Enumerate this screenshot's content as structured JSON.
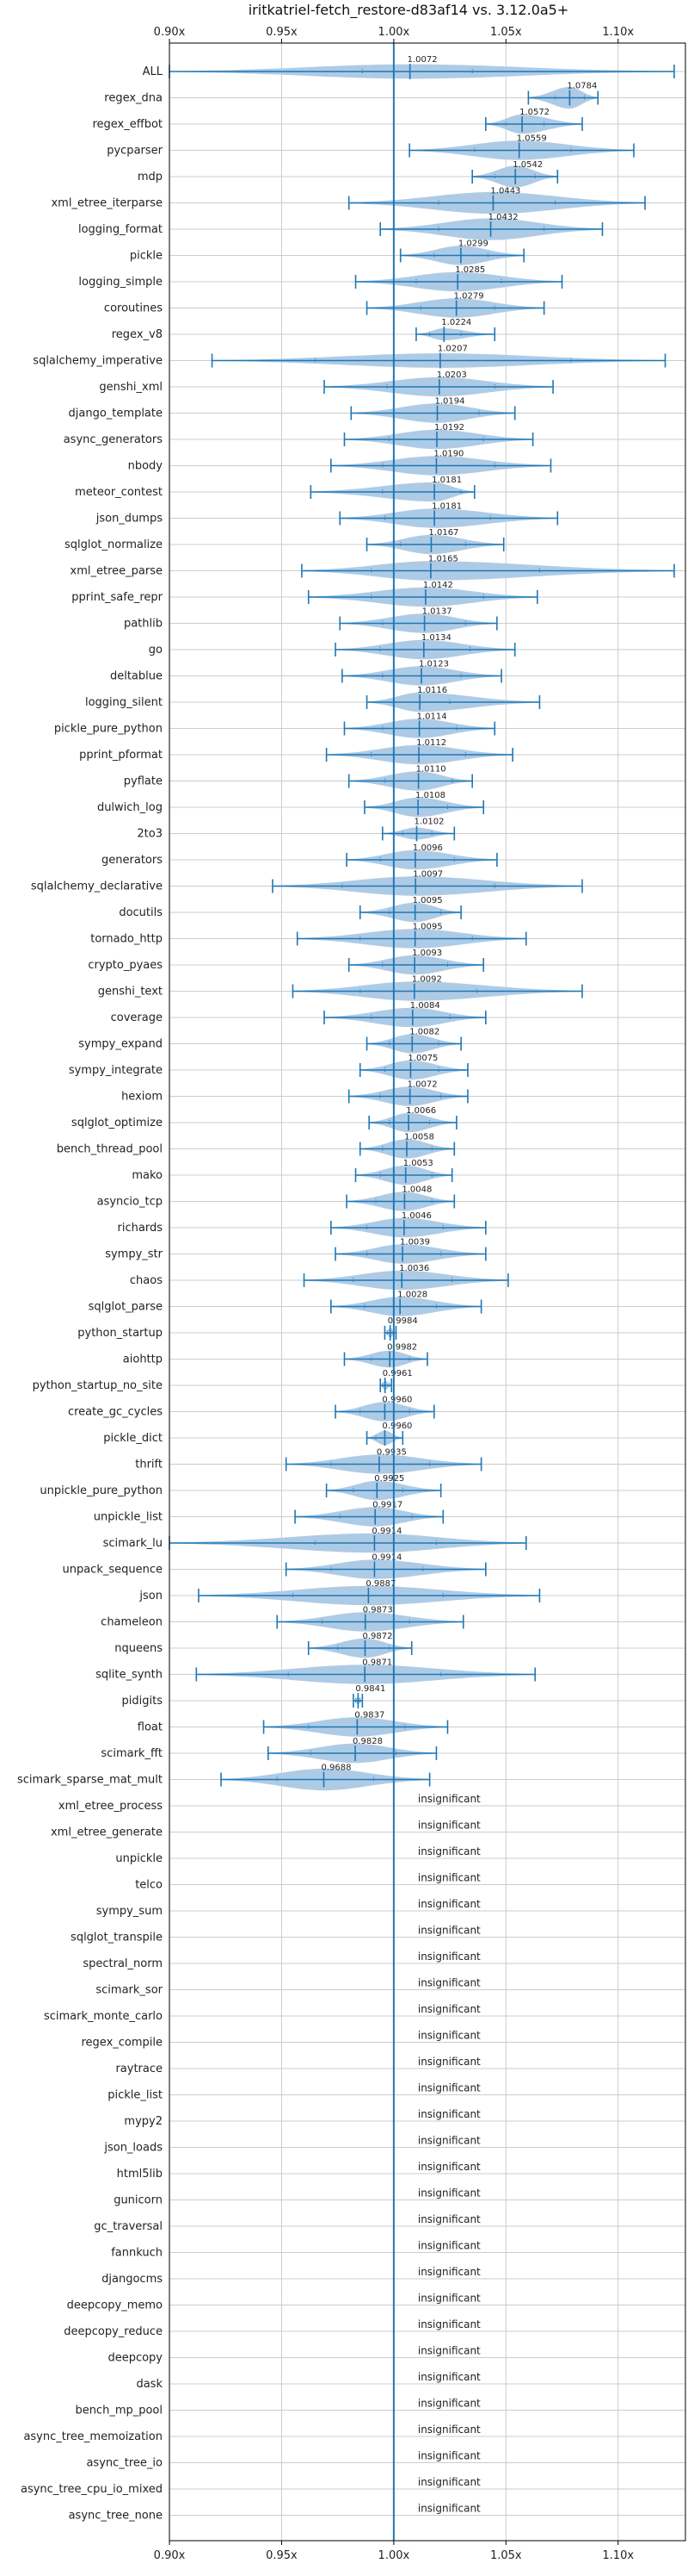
{
  "chart_data": {
    "type": "violin",
    "title": "iritkatriel-fetch_restore-d83af14 vs. 3.12.0a5+",
    "xlim": [
      0.9,
      1.13
    ],
    "ref_line": 1.0,
    "tick_values": [
      0.9,
      0.95,
      1.0,
      1.05,
      1.1
    ],
    "tick_labels": [
      "0.90x",
      "0.95x",
      "1.00x",
      "1.05x",
      "1.10x"
    ],
    "grid": true,
    "colors": {
      "violin": "#aecbe6",
      "line": "#1f77b4",
      "grid": "#cccccc"
    },
    "insignificant_label": "insignificant",
    "rows": [
      {
        "name": "ALL",
        "value": 1.0072,
        "min": 0.9,
        "max": 1.125,
        "q1": 0.986,
        "q3": 1.035,
        "w": 0.6
      },
      {
        "name": "regex_dna",
        "value": 1.0784,
        "min": 1.06,
        "max": 1.091,
        "q1": 1.072,
        "q3": 1.085,
        "w": 0.9
      },
      {
        "name": "regex_effbot",
        "value": 1.0572,
        "min": 1.041,
        "max": 1.084,
        "q1": 1.05,
        "q3": 1.067,
        "w": 0.8
      },
      {
        "name": "pycparser",
        "value": 1.0559,
        "min": 1.007,
        "max": 1.107,
        "q1": 1.036,
        "q3": 1.079,
        "w": 0.8
      },
      {
        "name": "mdp",
        "value": 1.0542,
        "min": 1.035,
        "max": 1.073,
        "q1": 1.045,
        "q3": 1.063,
        "w": 0.9
      },
      {
        "name": "xml_etree_iterparse",
        "value": 1.0443,
        "min": 0.98,
        "max": 1.112,
        "q1": 1.02,
        "q3": 1.072,
        "w": 0.9
      },
      {
        "name": "logging_format",
        "value": 1.0432,
        "min": 0.994,
        "max": 1.093,
        "q1": 1.02,
        "q3": 1.067,
        "w": 0.9
      },
      {
        "name": "pickle",
        "value": 1.0299,
        "min": 1.003,
        "max": 1.058,
        "q1": 1.018,
        "q3": 1.042,
        "w": 0.8
      },
      {
        "name": "logging_simple",
        "value": 1.0285,
        "min": 0.983,
        "max": 1.075,
        "q1": 1.01,
        "q3": 1.048,
        "w": 0.8
      },
      {
        "name": "coroutines",
        "value": 1.0279,
        "min": 0.988,
        "max": 1.067,
        "q1": 1.012,
        "q3": 1.045,
        "w": 0.8
      },
      {
        "name": "regex_v8",
        "value": 1.0224,
        "min": 1.01,
        "max": 1.045,
        "q1": 1.016,
        "q3": 1.03,
        "w": 0.5
      },
      {
        "name": "sqlalchemy_imperative",
        "value": 1.0207,
        "min": 0.919,
        "max": 1.121,
        "q1": 0.965,
        "q3": 1.079,
        "w": 0.6
      },
      {
        "name": "genshi_xml",
        "value": 1.0203,
        "min": 0.969,
        "max": 1.071,
        "q1": 0.997,
        "q3": 1.045,
        "w": 0.8
      },
      {
        "name": "django_template",
        "value": 1.0194,
        "min": 0.981,
        "max": 1.054,
        "q1": 1.0,
        "q3": 1.038,
        "w": 0.8
      },
      {
        "name": "async_generators",
        "value": 1.0192,
        "min": 0.978,
        "max": 1.062,
        "q1": 0.998,
        "q3": 1.04,
        "w": 0.8
      },
      {
        "name": "nbody",
        "value": 1.019,
        "min": 0.972,
        "max": 1.07,
        "q1": 0.995,
        "q3": 1.045,
        "w": 0.8
      },
      {
        "name": "meteor_contest",
        "value": 1.0181,
        "min": 0.963,
        "max": 1.036,
        "q1": 0.995,
        "q3": 1.03,
        "w": 0.8
      },
      {
        "name": "json_dumps",
        "value": 1.0181,
        "min": 0.976,
        "max": 1.073,
        "q1": 0.996,
        "q3": 1.043,
        "w": 0.8
      },
      {
        "name": "sqlglot_normalize",
        "value": 1.0167,
        "min": 0.988,
        "max": 1.049,
        "q1": 1.003,
        "q3": 1.032,
        "w": 0.8
      },
      {
        "name": "xml_etree_parse",
        "value": 1.0165,
        "min": 0.959,
        "max": 1.125,
        "q1": 0.99,
        "q3": 1.065,
        "w": 0.8
      },
      {
        "name": "pprint_safe_repr",
        "value": 1.0142,
        "min": 0.962,
        "max": 1.064,
        "q1": 0.99,
        "q3": 1.04,
        "w": 0.8
      },
      {
        "name": "pathlib",
        "value": 1.0137,
        "min": 0.976,
        "max": 1.046,
        "q1": 0.995,
        "q3": 1.032,
        "w": 0.8
      },
      {
        "name": "go",
        "value": 1.0134,
        "min": 0.974,
        "max": 1.054,
        "q1": 0.994,
        "q3": 1.034,
        "w": 0.8
      },
      {
        "name": "deltablue",
        "value": 1.0123,
        "min": 0.977,
        "max": 1.048,
        "q1": 0.995,
        "q3": 1.03,
        "w": 0.8
      },
      {
        "name": "logging_silent",
        "value": 1.0116,
        "min": 0.988,
        "max": 1.065,
        "q1": 1.0,
        "q3": 1.025,
        "w": 0.8
      },
      {
        "name": "pickle_pure_python",
        "value": 1.0114,
        "min": 0.978,
        "max": 1.045,
        "q1": 0.995,
        "q3": 1.028,
        "w": 0.8
      },
      {
        "name": "pprint_pformat",
        "value": 1.0112,
        "min": 0.97,
        "max": 1.053,
        "q1": 0.99,
        "q3": 1.032,
        "w": 0.8
      },
      {
        "name": "pyflate",
        "value": 1.011,
        "min": 0.98,
        "max": 1.035,
        "q1": 0.996,
        "q3": 1.026,
        "w": 0.8
      },
      {
        "name": "dulwich_log",
        "value": 1.0108,
        "min": 0.987,
        "max": 1.04,
        "q1": 1.0,
        "q3": 1.024,
        "w": 0.8
      },
      {
        "name": "2to3",
        "value": 1.0102,
        "min": 0.995,
        "max": 1.027,
        "q1": 1.004,
        "q3": 1.017,
        "w": 0.5
      },
      {
        "name": "generators",
        "value": 1.0096,
        "min": 0.979,
        "max": 1.046,
        "q1": 0.994,
        "q3": 1.027,
        "w": 0.8
      },
      {
        "name": "sqlalchemy_declarative",
        "value": 1.0097,
        "min": 0.946,
        "max": 1.084,
        "q1": 0.977,
        "q3": 1.045,
        "w": 0.8
      },
      {
        "name": "docutils",
        "value": 1.0095,
        "min": 0.985,
        "max": 1.03,
        "q1": 0.998,
        "q3": 1.021,
        "w": 0.8
      },
      {
        "name": "tornado_http",
        "value": 1.0095,
        "min": 0.957,
        "max": 1.059,
        "q1": 0.985,
        "q3": 1.035,
        "w": 0.8
      },
      {
        "name": "crypto_pyaes",
        "value": 1.0093,
        "min": 0.98,
        "max": 1.04,
        "q1": 0.995,
        "q3": 1.024,
        "w": 0.8
      },
      {
        "name": "genshi_text",
        "value": 1.0092,
        "min": 0.955,
        "max": 1.084,
        "q1": 0.985,
        "q3": 1.037,
        "w": 0.8
      },
      {
        "name": "coverage",
        "value": 1.0084,
        "min": 0.969,
        "max": 1.041,
        "q1": 0.99,
        "q3": 1.025,
        "w": 0.8
      },
      {
        "name": "sympy_expand",
        "value": 1.0082,
        "min": 0.988,
        "max": 1.03,
        "q1": 0.998,
        "q3": 1.02,
        "w": 0.8
      },
      {
        "name": "sympy_integrate",
        "value": 1.0075,
        "min": 0.985,
        "max": 1.033,
        "q1": 0.996,
        "q3": 1.02,
        "w": 0.8
      },
      {
        "name": "hexiom",
        "value": 1.0072,
        "min": 0.98,
        "max": 1.033,
        "q1": 0.994,
        "q3": 1.021,
        "w": 0.8
      },
      {
        "name": "sqlglot_optimize",
        "value": 1.0066,
        "min": 0.989,
        "max": 1.028,
        "q1": 0.998,
        "q3": 1.016,
        "w": 0.8
      },
      {
        "name": "bench_thread_pool",
        "value": 1.0058,
        "min": 0.985,
        "max": 1.027,
        "q1": 0.995,
        "q3": 1.017,
        "w": 0.8
      },
      {
        "name": "mako",
        "value": 1.0053,
        "min": 0.983,
        "max": 1.026,
        "q1": 0.994,
        "q3": 1.017,
        "w": 0.8
      },
      {
        "name": "asyncio_tcp",
        "value": 1.0048,
        "min": 0.979,
        "max": 1.027,
        "q1": 0.992,
        "q3": 1.017,
        "w": 0.8
      },
      {
        "name": "richards",
        "value": 1.0046,
        "min": 0.972,
        "max": 1.041,
        "q1": 0.988,
        "q3": 1.022,
        "w": 0.8
      },
      {
        "name": "sympy_str",
        "value": 1.0039,
        "min": 0.974,
        "max": 1.041,
        "q1": 0.988,
        "q3": 1.021,
        "w": 0.8
      },
      {
        "name": "chaos",
        "value": 1.0036,
        "min": 0.96,
        "max": 1.051,
        "q1": 0.982,
        "q3": 1.026,
        "w": 0.8
      },
      {
        "name": "sqlglot_parse",
        "value": 1.0028,
        "min": 0.972,
        "max": 1.039,
        "q1": 0.987,
        "q3": 1.019,
        "w": 0.8
      },
      {
        "name": "python_startup",
        "value": 0.9984,
        "min": 0.996,
        "max": 1.001,
        "q1": 0.997,
        "q3": 1.0,
        "w": 0.4
      },
      {
        "name": "aiohttp",
        "value": 0.9982,
        "min": 0.978,
        "max": 1.015,
        "q1": 0.99,
        "q3": 1.007,
        "w": 0.7
      },
      {
        "name": "python_startup_no_site",
        "value": 0.9961,
        "min": 0.994,
        "max": 0.999,
        "q1": 0.995,
        "q3": 0.998,
        "w": 0.4
      },
      {
        "name": "create_gc_cycles",
        "value": 0.996,
        "min": 0.974,
        "max": 1.018,
        "q1": 0.985,
        "q3": 1.007,
        "w": 0.8
      },
      {
        "name": "pickle_dict",
        "value": 0.996,
        "min": 0.988,
        "max": 1.004,
        "q1": 0.992,
        "q3": 1.0,
        "w": 0.6
      },
      {
        "name": "thrift",
        "value": 0.9935,
        "min": 0.952,
        "max": 1.039,
        "q1": 0.972,
        "q3": 1.016,
        "w": 0.8
      },
      {
        "name": "unpickle_pure_python",
        "value": 0.9925,
        "min": 0.97,
        "max": 1.021,
        "q1": 0.982,
        "q3": 1.004,
        "w": 0.8
      },
      {
        "name": "unpickle_list",
        "value": 0.9917,
        "min": 0.956,
        "max": 1.022,
        "q1": 0.976,
        "q3": 1.008,
        "w": 0.8
      },
      {
        "name": "scimark_lu",
        "value": 0.9914,
        "min": 0.9,
        "max": 1.059,
        "q1": 0.965,
        "q3": 1.019,
        "w": 0.8
      },
      {
        "name": "unpack_sequence",
        "value": 0.9914,
        "min": 0.952,
        "max": 1.041,
        "q1": 0.972,
        "q3": 1.013,
        "w": 0.8
      },
      {
        "name": "json",
        "value": 0.9887,
        "min": 0.913,
        "max": 1.065,
        "q1": 0.955,
        "q3": 1.022,
        "w": 0.8
      },
      {
        "name": "chameleon",
        "value": 0.9873,
        "min": 0.948,
        "max": 1.031,
        "q1": 0.968,
        "q3": 1.007,
        "w": 0.8
      },
      {
        "name": "nqueens",
        "value": 0.9872,
        "min": 0.962,
        "max": 1.008,
        "q1": 0.975,
        "q3": 0.998,
        "w": 0.8
      },
      {
        "name": "sqlite_synth",
        "value": 0.9871,
        "min": 0.912,
        "max": 1.063,
        "q1": 0.953,
        "q3": 1.021,
        "w": 0.8
      },
      {
        "name": "pidigits",
        "value": 0.9841,
        "min": 0.982,
        "max": 0.986,
        "q1": 0.983,
        "q3": 0.985,
        "w": 0.3
      },
      {
        "name": "float",
        "value": 0.9837,
        "min": 0.942,
        "max": 1.024,
        "q1": 0.962,
        "q3": 1.005,
        "w": 0.8
      },
      {
        "name": "scimark_fft",
        "value": 0.9828,
        "min": 0.944,
        "max": 1.019,
        "q1": 0.963,
        "q3": 1.001,
        "w": 0.8
      },
      {
        "name": "scimark_sparse_mat_mult",
        "value": 0.9688,
        "min": 0.923,
        "max": 1.016,
        "q1": 0.948,
        "q3": 0.991,
        "w": 0.9
      },
      {
        "name": "xml_etree_process",
        "value": null
      },
      {
        "name": "xml_etree_generate",
        "value": null
      },
      {
        "name": "unpickle",
        "value": null
      },
      {
        "name": "telco",
        "value": null
      },
      {
        "name": "sympy_sum",
        "value": null
      },
      {
        "name": "sqlglot_transpile",
        "value": null
      },
      {
        "name": "spectral_norm",
        "value": null
      },
      {
        "name": "scimark_sor",
        "value": null
      },
      {
        "name": "scimark_monte_carlo",
        "value": null
      },
      {
        "name": "regex_compile",
        "value": null
      },
      {
        "name": "raytrace",
        "value": null
      },
      {
        "name": "pickle_list",
        "value": null
      },
      {
        "name": "mypy2",
        "value": null
      },
      {
        "name": "json_loads",
        "value": null
      },
      {
        "name": "html5lib",
        "value": null
      },
      {
        "name": "gunicorn",
        "value": null
      },
      {
        "name": "gc_traversal",
        "value": null
      },
      {
        "name": "fannkuch",
        "value": null
      },
      {
        "name": "djangocms",
        "value": null
      },
      {
        "name": "deepcopy_memo",
        "value": null
      },
      {
        "name": "deepcopy_reduce",
        "value": null
      },
      {
        "name": "deepcopy",
        "value": null
      },
      {
        "name": "dask",
        "value": null
      },
      {
        "name": "bench_mp_pool",
        "value": null
      },
      {
        "name": "async_tree_memoization",
        "value": null
      },
      {
        "name": "async_tree_io",
        "value": null
      },
      {
        "name": "async_tree_cpu_io_mixed",
        "value": null
      },
      {
        "name": "async_tree_none",
        "value": null
      }
    ]
  }
}
